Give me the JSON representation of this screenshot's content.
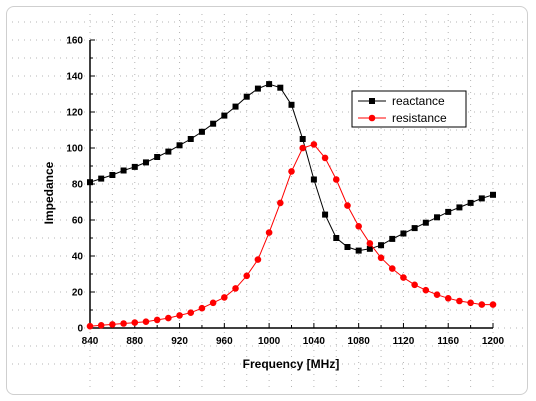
{
  "chart_data": {
    "type": "line",
    "xlabel": "Frequency [MHz]",
    "ylabel": "Impedance",
    "xlim": [
      840,
      1200
    ],
    "ylim": [
      0,
      160
    ],
    "x_ticks": [
      840,
      880,
      920,
      960,
      1000,
      1040,
      1080,
      1120,
      1160,
      1200
    ],
    "y_ticks": [
      0,
      20,
      40,
      60,
      80,
      100,
      120,
      140,
      160
    ],
    "grid": "dotted",
    "legend_position": "top-right",
    "x": [
      840,
      850,
      860,
      870,
      880,
      890,
      900,
      910,
      920,
      930,
      940,
      950,
      960,
      970,
      980,
      990,
      1000,
      1010,
      1020,
      1030,
      1040,
      1050,
      1060,
      1070,
      1080,
      1090,
      1100,
      1110,
      1120,
      1130,
      1140,
      1150,
      1160,
      1170,
      1180,
      1190,
      1200
    ],
    "series": [
      {
        "name": "reactance",
        "color": "#000000",
        "marker": "square",
        "values": [
          81,
          83,
          85,
          87.5,
          89.5,
          92,
          95,
          98,
          101.5,
          105,
          109,
          113.5,
          118,
          123,
          128.5,
          133,
          135.5,
          133.5,
          124,
          105,
          82.5,
          63,
          50,
          45,
          43,
          44,
          46,
          49.5,
          52.5,
          55.5,
          58.5,
          61.5,
          64.5,
          67,
          69.5,
          72,
          74
        ]
      },
      {
        "name": "resistance",
        "color": "#ff0000",
        "marker": "circle",
        "values": [
          1,
          1.5,
          2,
          2.5,
          3,
          3.5,
          4.5,
          5.5,
          7,
          8.5,
          11,
          14,
          17,
          22,
          29,
          38,
          53,
          69.5,
          87,
          100,
          102,
          94.5,
          82.5,
          68,
          56.5,
          47,
          39,
          33,
          28,
          24,
          21,
          18.5,
          16.5,
          15,
          14,
          13,
          13
        ]
      }
    ]
  }
}
